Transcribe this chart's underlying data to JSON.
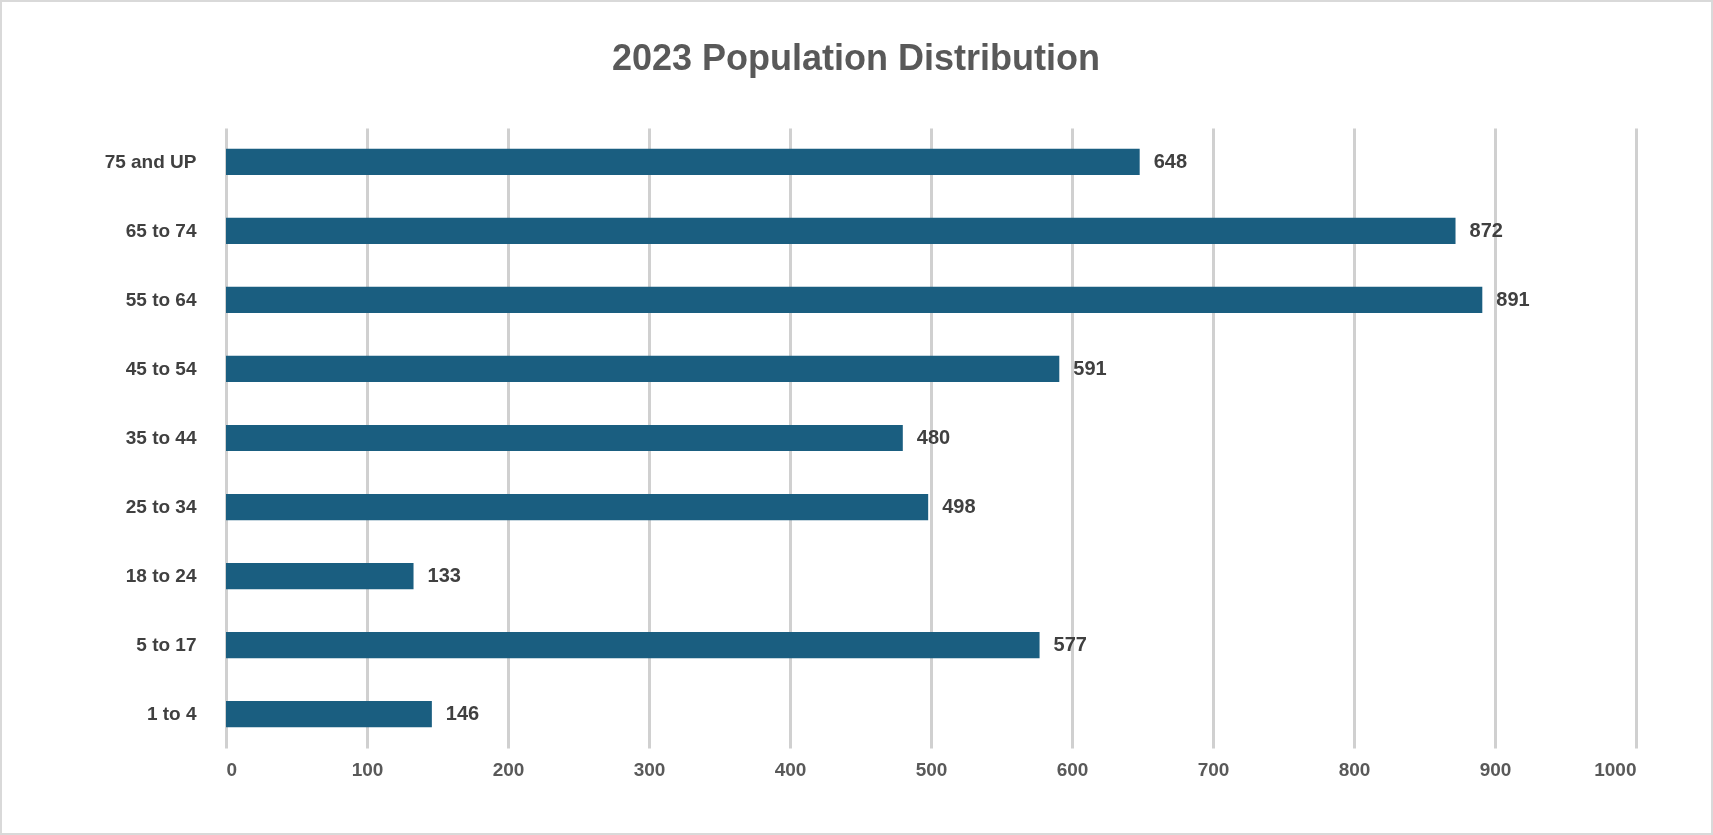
{
  "chart_data": {
    "type": "bar",
    "orientation": "horizontal",
    "title": "2023 Population Distribution",
    "categories": [
      "75 and UP",
      "65 to 74",
      "55 to 64",
      "45 to 54",
      "35 to 44",
      "25 to 34",
      "18 to 24",
      "5 to 17",
      "1 to 4"
    ],
    "values": [
      648,
      872,
      891,
      591,
      480,
      498,
      133,
      577,
      146
    ],
    "color": "#1a5e80",
    "xlim": [
      0,
      1000
    ],
    "xticks": [
      0,
      100,
      200,
      300,
      400,
      500,
      600,
      700,
      800,
      900,
      1000
    ],
    "grid": "x",
    "data_labels": true
  }
}
